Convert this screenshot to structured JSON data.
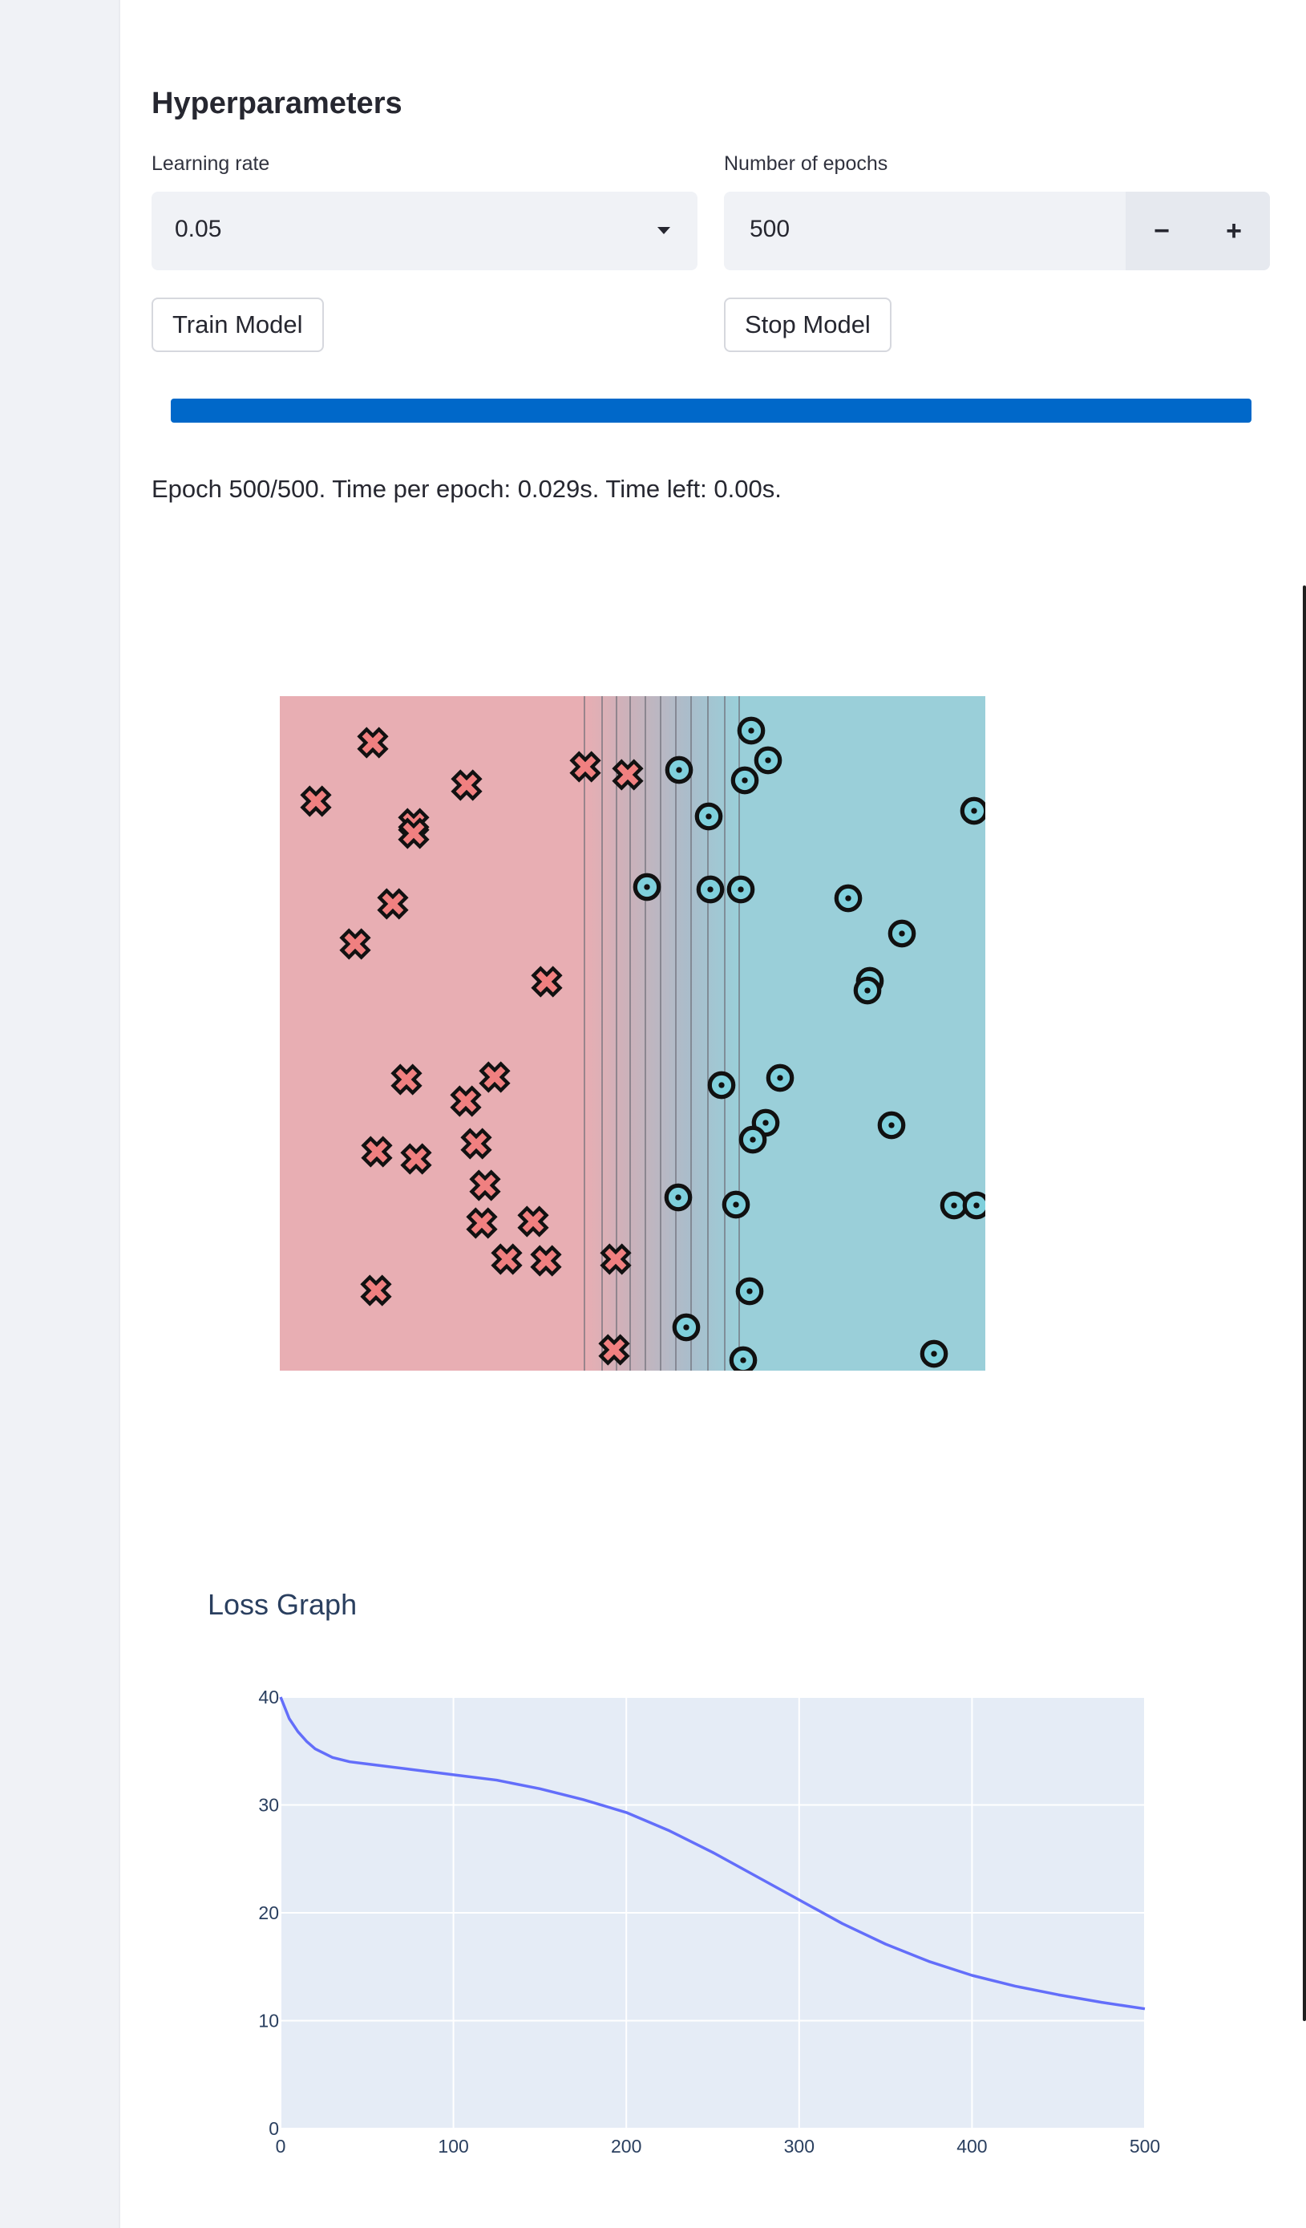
{
  "hyperparameters": {
    "title": "Hyperparameters",
    "learning_rate": {
      "label": "Learning rate",
      "value": "0.05"
    },
    "epochs": {
      "label": "Number of epochs",
      "value": "500",
      "decrement": "−",
      "increment": "+"
    }
  },
  "buttons": {
    "train": "Train Model",
    "stop": "Stop Model"
  },
  "progress": {
    "value": 1.0,
    "color": "#0068c9"
  },
  "status_text": "Epoch 500/500. Time per epoch: 0.029s. Time left: 0.00s.",
  "boundary_plot": {
    "colors": {
      "class_x": "#e8aeb3",
      "class_o": "#9acfd9",
      "mid": "#b8b9c3"
    },
    "legend": {
      "class_x": "cross",
      "class_o": "circle"
    }
  },
  "loss_chart": {
    "title": "Loss Graph",
    "chart_data": {
      "type": "line",
      "title": "Loss Graph",
      "xlabel": "",
      "ylabel": "",
      "xlim": [
        0,
        500
      ],
      "ylim": [
        0,
        40
      ],
      "x_ticks": [
        0,
        100,
        200,
        300,
        400,
        500
      ],
      "y_ticks": [
        0,
        10,
        20,
        30,
        40
      ],
      "grid": true,
      "line_color": "#636efa",
      "background": "#e5ecf6",
      "series": [
        {
          "x": [
            0,
            5,
            10,
            15,
            20,
            30,
            40,
            50,
            75,
            100,
            125,
            150,
            175,
            200,
            225,
            250,
            275,
            300,
            325,
            350,
            375,
            400,
            425,
            450,
            475,
            500
          ],
          "values": [
            40.0,
            38.0,
            36.8,
            35.9,
            35.2,
            34.4,
            34.0,
            33.8,
            33.3,
            32.8,
            32.3,
            31.5,
            30.5,
            29.3,
            27.6,
            25.6,
            23.4,
            21.2,
            19.0,
            17.1,
            15.5,
            14.2,
            13.2,
            12.4,
            11.7,
            11.1
          ]
        }
      ]
    }
  }
}
